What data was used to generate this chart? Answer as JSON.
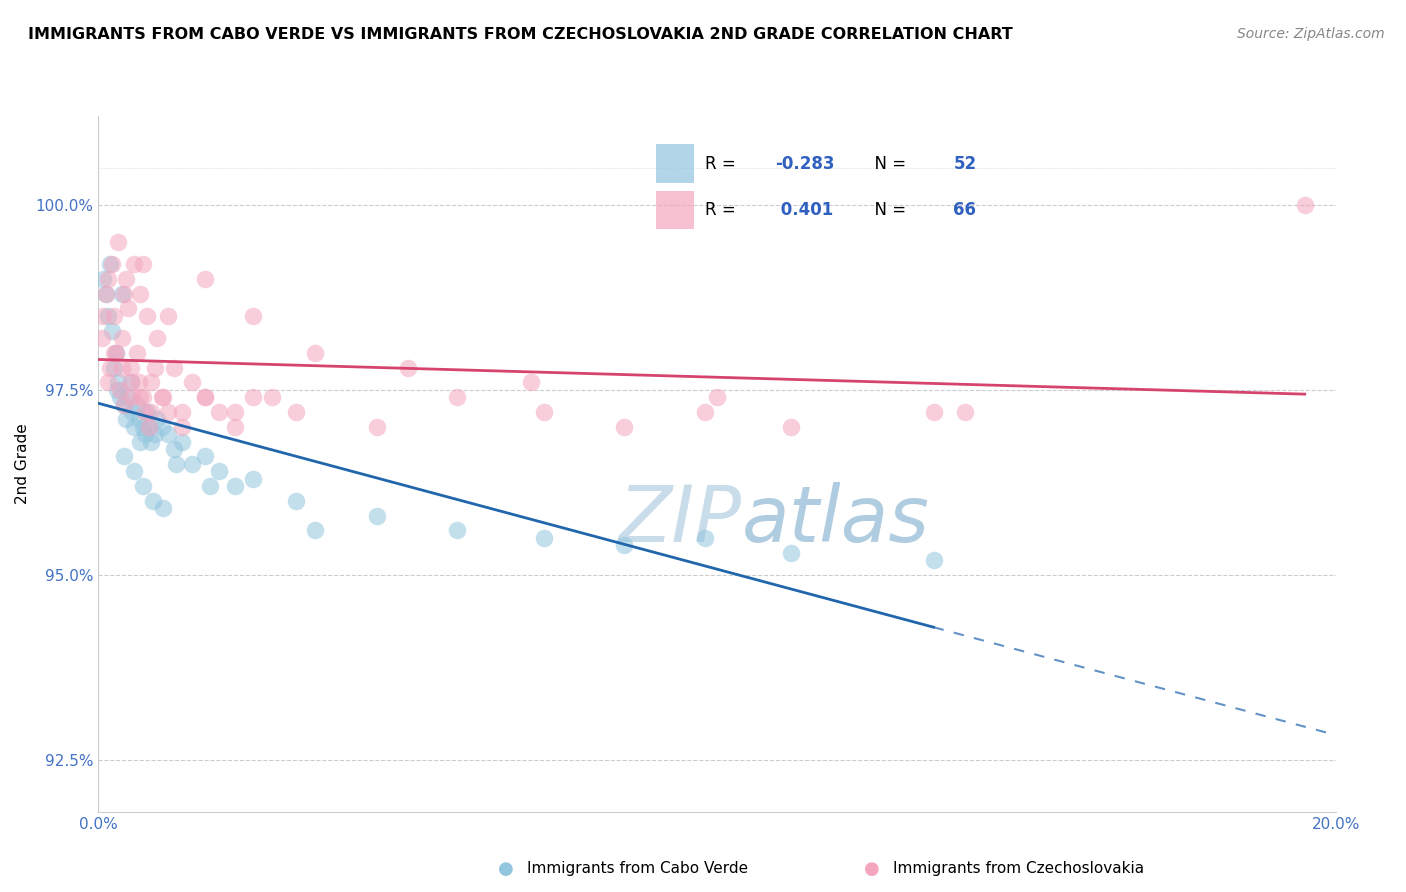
{
  "title": "IMMIGRANTS FROM CABO VERDE VS IMMIGRANTS FROM CZECHOSLOVAKIA 2ND GRADE CORRELATION CHART",
  "source": "Source: ZipAtlas.com",
  "ylabel": "2nd Grade",
  "xlim": [
    0.0,
    20.0
  ],
  "ylim": [
    91.8,
    101.2
  ],
  "yticks": [
    92.5,
    95.0,
    97.5,
    100.0
  ],
  "ytick_labels": [
    "92.5%",
    "95.0%",
    "97.5%",
    "100.0%"
  ],
  "blue_label": "Immigrants from Cabo Verde",
  "pink_label": "Immigrants from Czechoslovakia",
  "blue_R": -0.283,
  "blue_N": 52,
  "pink_R": 0.401,
  "pink_N": 66,
  "blue_color": "#92c5de",
  "pink_color": "#f4a6be",
  "blue_line_color": "#2166ac",
  "pink_line_color": "#d6446e",
  "watermark_color": "#d8e8f0",
  "blue_x": [
    0.08,
    0.12,
    0.15,
    0.18,
    0.22,
    0.25,
    0.28,
    0.32,
    0.35,
    0.38,
    0.42,
    0.45,
    0.48,
    0.52,
    0.55,
    0.58,
    0.62,
    0.65,
    0.68,
    0.72,
    0.75,
    0.78,
    0.82,
    0.85,
    0.92,
    0.95,
    1.02,
    1.12,
    1.22,
    1.35,
    1.52,
    1.72,
    1.95,
    2.2,
    2.5,
    3.2,
    4.5,
    5.8,
    7.2,
    8.5,
    9.8,
    11.2,
    13.5,
    0.3,
    0.42,
    0.58,
    0.72,
    0.88,
    1.05,
    1.25,
    1.8,
    3.5
  ],
  "blue_y": [
    99.0,
    98.8,
    98.5,
    99.2,
    98.3,
    97.8,
    98.0,
    97.6,
    97.4,
    98.8,
    97.3,
    97.1,
    97.4,
    97.6,
    97.2,
    97.0,
    97.3,
    97.1,
    96.8,
    97.0,
    96.9,
    97.2,
    97.0,
    96.8,
    96.9,
    97.1,
    97.0,
    96.9,
    96.7,
    96.8,
    96.5,
    96.6,
    96.4,
    96.2,
    96.3,
    96.0,
    95.8,
    95.6,
    95.5,
    95.4,
    95.5,
    95.3,
    95.2,
    97.5,
    96.6,
    96.4,
    96.2,
    96.0,
    95.9,
    96.5,
    96.2,
    95.6
  ],
  "pink_x": [
    0.05,
    0.08,
    0.12,
    0.15,
    0.18,
    0.22,
    0.25,
    0.28,
    0.32,
    0.35,
    0.38,
    0.42,
    0.45,
    0.48,
    0.52,
    0.55,
    0.58,
    0.62,
    0.65,
    0.68,
    0.72,
    0.75,
    0.78,
    0.82,
    0.85,
    0.92,
    0.95,
    1.02,
    1.12,
    1.22,
    1.35,
    1.52,
    1.72,
    1.95,
    2.2,
    2.5,
    3.2,
    4.5,
    5.8,
    7.2,
    8.5,
    9.8,
    11.2,
    13.5,
    0.25,
    0.38,
    0.52,
    0.68,
    0.85,
    1.05,
    1.35,
    1.72,
    2.2,
    2.8,
    0.15,
    0.42,
    0.72,
    1.12,
    1.72,
    2.5,
    3.5,
    5.0,
    7.0,
    10.0,
    14.0,
    19.5
  ],
  "pink_y": [
    98.2,
    98.5,
    98.8,
    97.6,
    97.8,
    99.2,
    98.5,
    98.0,
    99.5,
    97.5,
    98.2,
    97.3,
    99.0,
    98.6,
    97.8,
    97.4,
    99.2,
    98.0,
    97.6,
    98.8,
    97.4,
    97.2,
    98.5,
    97.0,
    97.6,
    97.8,
    98.2,
    97.4,
    97.2,
    97.8,
    97.0,
    97.6,
    97.4,
    97.2,
    97.0,
    97.4,
    97.2,
    97.0,
    97.4,
    97.2,
    97.0,
    97.2,
    97.0,
    97.2,
    98.0,
    97.8,
    97.6,
    97.4,
    97.2,
    97.4,
    97.2,
    97.4,
    97.2,
    97.4,
    99.0,
    98.8,
    99.2,
    98.5,
    99.0,
    98.5,
    98.0,
    97.8,
    97.6,
    97.4,
    97.2,
    100.0
  ]
}
